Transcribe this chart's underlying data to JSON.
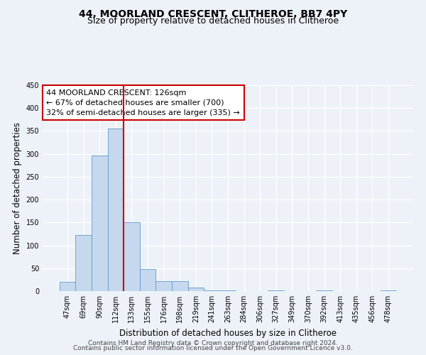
{
  "title": "44, MOORLAND CRESCENT, CLITHEROE, BB7 4PY",
  "subtitle": "Size of property relative to detached houses in Clitheroe",
  "xlabel": "Distribution of detached houses by size in Clitheroe",
  "ylabel": "Number of detached properties",
  "bin_labels": [
    "47sqm",
    "69sqm",
    "90sqm",
    "112sqm",
    "133sqm",
    "155sqm",
    "176sqm",
    "198sqm",
    "219sqm",
    "241sqm",
    "263sqm",
    "284sqm",
    "306sqm",
    "327sqm",
    "349sqm",
    "370sqm",
    "392sqm",
    "413sqm",
    "435sqm",
    "456sqm",
    "478sqm"
  ],
  "bar_values": [
    20,
    123,
    297,
    355,
    150,
    48,
    22,
    22,
    7,
    2,
    1,
    0,
    0,
    1,
    0,
    0,
    1,
    0,
    0,
    0,
    1
  ],
  "bar_color": "#c5d8ed",
  "bar_edge_color": "#6699cc",
  "property_line_color": "#cc0000",
  "annotation_text": "44 MOORLAND CRESCENT: 126sqm\n← 67% of detached houses are smaller (700)\n32% of semi-detached houses are larger (335) →",
  "annotation_box_facecolor": "#ffffff",
  "annotation_box_edgecolor": "#cc0000",
  "ylim": [
    0,
    450
  ],
  "yticks": [
    0,
    50,
    100,
    150,
    200,
    250,
    300,
    350,
    400,
    450
  ],
  "footer_line1": "Contains HM Land Registry data © Crown copyright and database right 2024.",
  "footer_line2": "Contains public sector information licensed under the Open Government Licence v3.0.",
  "background_color": "#edf2f9",
  "grid_color": "#ffffff",
  "title_fontsize": 10,
  "subtitle_fontsize": 9,
  "axis_label_fontsize": 8.5,
  "tick_fontsize": 7,
  "annotation_fontsize": 8,
  "footer_fontsize": 6.5
}
